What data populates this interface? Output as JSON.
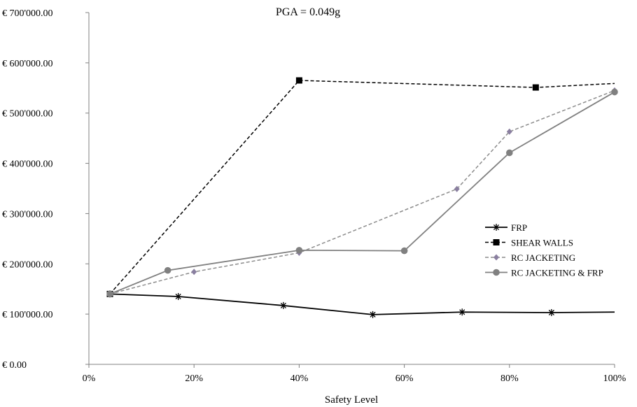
{
  "chart_data": {
    "type": "line",
    "title": "PGA = 0.049g",
    "xlabel": "Safety Level",
    "ylabel": "",
    "xlim": [
      0,
      100
    ],
    "ylim": [
      0,
      700000
    ],
    "x_ticks": [
      0,
      20,
      40,
      60,
      80,
      100
    ],
    "x_tick_labels": [
      "0%",
      "20%",
      "40%",
      "60%",
      "80%",
      "100%"
    ],
    "y_ticks": [
      0,
      100000,
      200000,
      300000,
      400000,
      500000,
      600000,
      700000
    ],
    "y_tick_labels": [
      "€ 0.00",
      "€ 100'000.00",
      "€ 200'000.00",
      "€ 300'000.00",
      "€ 400'000.00",
      "€ 500'000.00",
      "€ 600'000.00",
      "€ 700'000.00"
    ],
    "grid": false,
    "legend_position": "right",
    "series": [
      {
        "name": "FRP",
        "color": "#000000",
        "dash": "solid",
        "marker": "asterisk",
        "points": [
          [
            4,
            140000
          ],
          [
            17,
            135000
          ],
          [
            37,
            117000
          ],
          [
            54,
            99000
          ],
          [
            71,
            104000
          ],
          [
            88,
            103000
          ],
          [
            100,
            104000
          ]
        ],
        "marker_points": [
          [
            4,
            140000
          ],
          [
            17,
            135000
          ],
          [
            37,
            117000
          ],
          [
            54,
            99000
          ],
          [
            71,
            104000
          ],
          [
            88,
            103000
          ]
        ]
      },
      {
        "name": "SHEAR WALLS",
        "color": "#000000",
        "dash": "dashed",
        "marker": "square",
        "points": [
          [
            4,
            140000
          ],
          [
            40,
            565000
          ],
          [
            85,
            551000
          ],
          [
            100,
            559000
          ]
        ],
        "marker_points": [
          [
            4,
            140000
          ],
          [
            40,
            565000
          ],
          [
            85,
            551000
          ]
        ]
      },
      {
        "name": "RC JACKETING",
        "color": "#8a7fa0",
        "line_color": "#8c8c8c",
        "dash": "dashed",
        "marker": "diamond",
        "points": [
          [
            4,
            140000
          ],
          [
            20,
            184000
          ],
          [
            40,
            222000
          ],
          [
            70,
            349000
          ],
          [
            80,
            463000
          ],
          [
            100,
            545000
          ]
        ],
        "marker_points": [
          [
            4,
            140000
          ],
          [
            20,
            184000
          ],
          [
            40,
            222000
          ],
          [
            70,
            349000
          ],
          [
            80,
            463000
          ],
          [
            100,
            545000
          ]
        ]
      },
      {
        "name": "RC JACKETING & FRP",
        "color": "#808080",
        "dash": "solid",
        "marker": "circle",
        "points": [
          [
            4,
            140000
          ],
          [
            15,
            187000
          ],
          [
            40,
            227000
          ],
          [
            60,
            226000
          ],
          [
            80,
            421000
          ],
          [
            100,
            542000
          ]
        ],
        "marker_points": [
          [
            4,
            140000
          ],
          [
            15,
            187000
          ],
          [
            40,
            227000
          ],
          [
            60,
            226000
          ],
          [
            80,
            421000
          ],
          [
            100,
            542000
          ]
        ]
      }
    ]
  }
}
